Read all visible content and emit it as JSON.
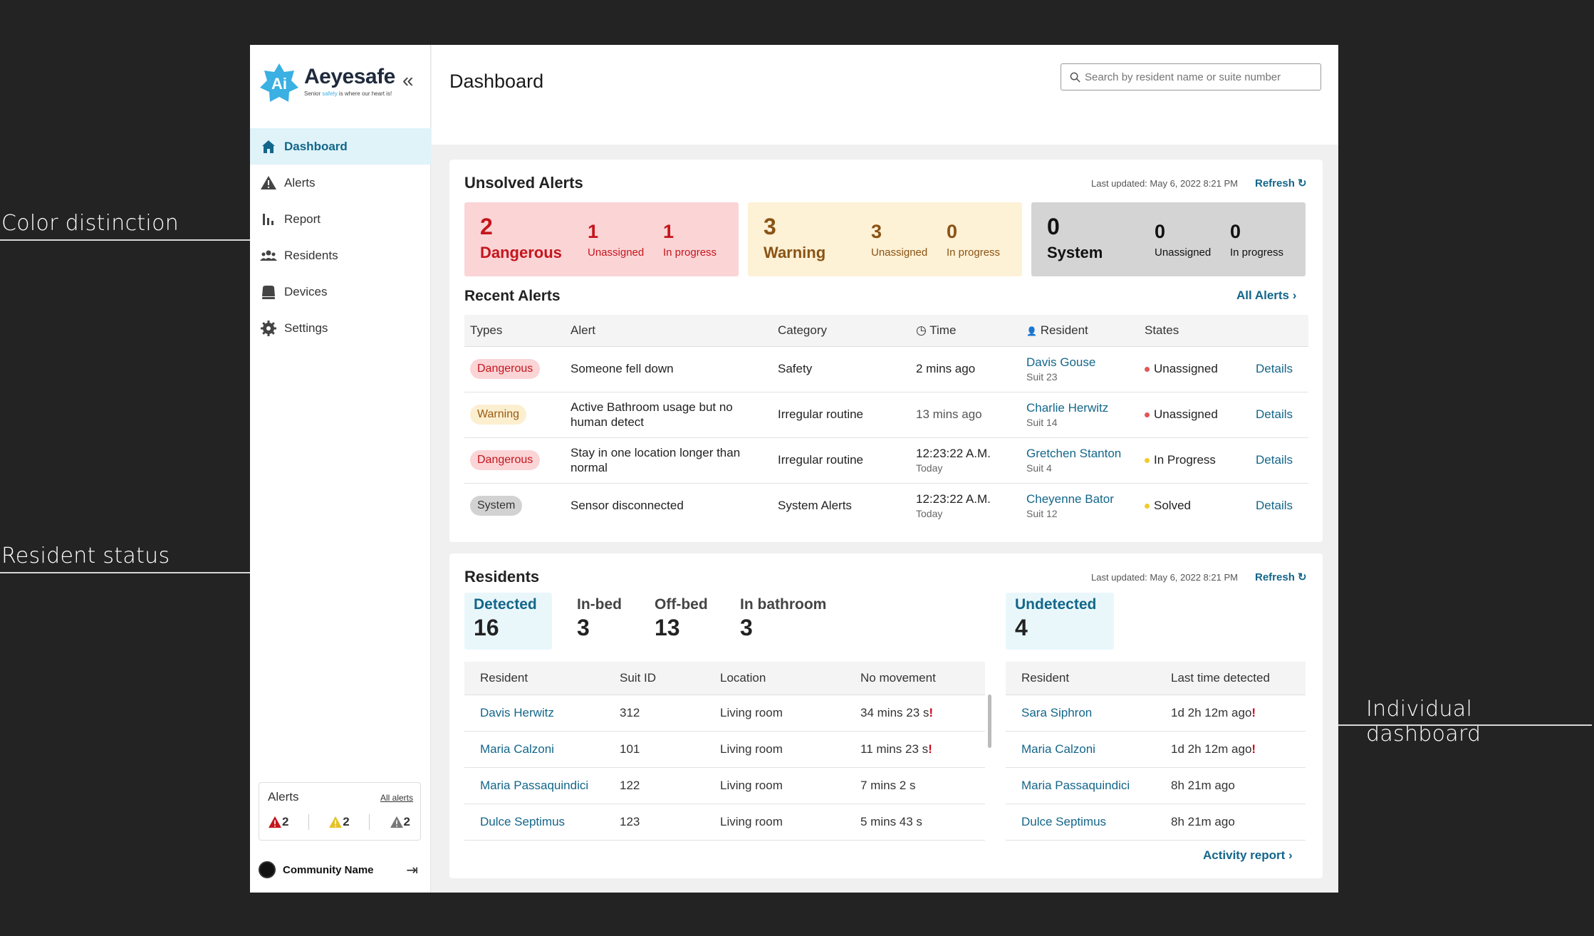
{
  "annotations": {
    "color": "Color distinction",
    "resident": "Resident status",
    "individual": "Individual dashboard"
  },
  "brand": {
    "logo_mark": "Ai",
    "name": "Aeyesafe",
    "tagline_pre": "Senior ",
    "tagline_em": "safety",
    "tagline_post": " is where our heart is!"
  },
  "sidebar": {
    "items": [
      {
        "label": "Dashboard",
        "icon": "home-icon"
      },
      {
        "label": "Alerts",
        "icon": "warning-icon"
      },
      {
        "label": "Report",
        "icon": "bar-chart-icon"
      },
      {
        "label": "Residents",
        "icon": "people-icon"
      },
      {
        "label": "Devices",
        "icon": "device-icon"
      },
      {
        "label": "Settings",
        "icon": "gear-icon"
      }
    ],
    "alerts_widget": {
      "title": "Alerts",
      "all_link": "All alerts",
      "dangerous": "2",
      "warning": "2",
      "system": "2"
    },
    "community": "Community Name"
  },
  "header": {
    "title": "Dashboard",
    "search_placeholder": "Search by resident name or suite number"
  },
  "unsolved": {
    "title": "Unsolved Alerts",
    "updated": "Last updated: May 6, 2022 8:21 PM",
    "refresh": "Refresh",
    "boxes": [
      {
        "count": "2",
        "label": "Dangerous",
        "unassigned": "1",
        "in_progress": "1"
      },
      {
        "count": "3",
        "label": "Warning",
        "unassigned": "3",
        "in_progress": "0"
      },
      {
        "count": "0",
        "label": "System",
        "unassigned": "0",
        "in_progress": "0"
      }
    ],
    "unassigned_label": "Unassigned",
    "in_progress_label": "In progress"
  },
  "recent": {
    "title": "Recent Alerts",
    "all_link": "All Alerts",
    "columns": [
      "Types",
      "Alert",
      "Category",
      "Time",
      "Resident",
      "States"
    ],
    "rows": [
      {
        "type": "Dangerous",
        "alert": "Someone fell down",
        "category": "Safety",
        "time": "2 mins ago",
        "time_sub": "",
        "resident": "Davis Gouse",
        "suite": "Suit 23",
        "state": "Unassigned",
        "details": "Details"
      },
      {
        "type": "Warning",
        "alert": "Active Bathroom usage but no human detect",
        "category": "Irregular routine",
        "time": "13 mins ago",
        "time_sub": "",
        "resident": "Charlie Herwitz",
        "suite": "Suit 14",
        "state": "Unassigned",
        "details": "Details"
      },
      {
        "type": "Dangerous",
        "alert": "Stay in one location longer than normal",
        "category": "Irregular routine",
        "time": "12:23:22 A.M.",
        "time_sub": "Today",
        "resident": "Gretchen Stanton",
        "suite": "Suit 4",
        "state": "In Progress",
        "details": "Details"
      },
      {
        "type": "System",
        "alert": "Sensor disconnected",
        "category": "System Alerts",
        "time": "12:23:22 A.M.",
        "time_sub": "Today",
        "resident": "Cheyenne Bator",
        "suite": "Suit 12",
        "state": "Solved",
        "details": "Details"
      }
    ]
  },
  "residents": {
    "title": "Residents",
    "updated": "Last updated: May 6, 2022 8:21 PM",
    "refresh": "Refresh",
    "detected": {
      "label": "Detected",
      "value": "16"
    },
    "in_bed": {
      "label": "In-bed",
      "value": "3"
    },
    "off_bed": {
      "label": "Off-bed",
      "value": "13"
    },
    "in_bathroom": {
      "label": "In bathroom",
      "value": "3"
    },
    "undetected": {
      "label": "Undetected",
      "value": "4"
    },
    "detected_columns": [
      "Resident",
      "Suit ID",
      "Location",
      "No movement"
    ],
    "detected_rows": [
      {
        "name": "Davis Herwitz",
        "suit": "312",
        "location": "Living room",
        "no_movement": "34 mins 23 s",
        "flag": "!"
      },
      {
        "name": "Maria Calzoni",
        "suit": "101",
        "location": "Living room",
        "no_movement": "11 mins 23 s",
        "flag": "!"
      },
      {
        "name": "Maria Passaquindici",
        "suit": "122",
        "location": "Living room",
        "no_movement": "7 mins 2 s",
        "flag": ""
      },
      {
        "name": "Dulce Septimus",
        "suit": "123",
        "location": "Living room",
        "no_movement": "5 mins 43 s",
        "flag": ""
      }
    ],
    "undetected_columns": [
      "Resident",
      "Last time detected"
    ],
    "undetected_rows": [
      {
        "name": "Sara Siphron",
        "last": "1d 2h 12m ago",
        "flag": "!"
      },
      {
        "name": "Maria Calzoni",
        "last": "1d 2h 12m ago",
        "flag": "!"
      },
      {
        "name": "Maria Passaquindici",
        "last": "8h 21m ago",
        "flag": ""
      },
      {
        "name": "Dulce Septimus",
        "last": "8h 21m ago",
        "flag": ""
      }
    ],
    "activity_link": "Activity report"
  },
  "colors": {
    "accent": "#13668a",
    "danger": "#c4161c",
    "warning": "#9a5a12",
    "system": "#333333"
  }
}
